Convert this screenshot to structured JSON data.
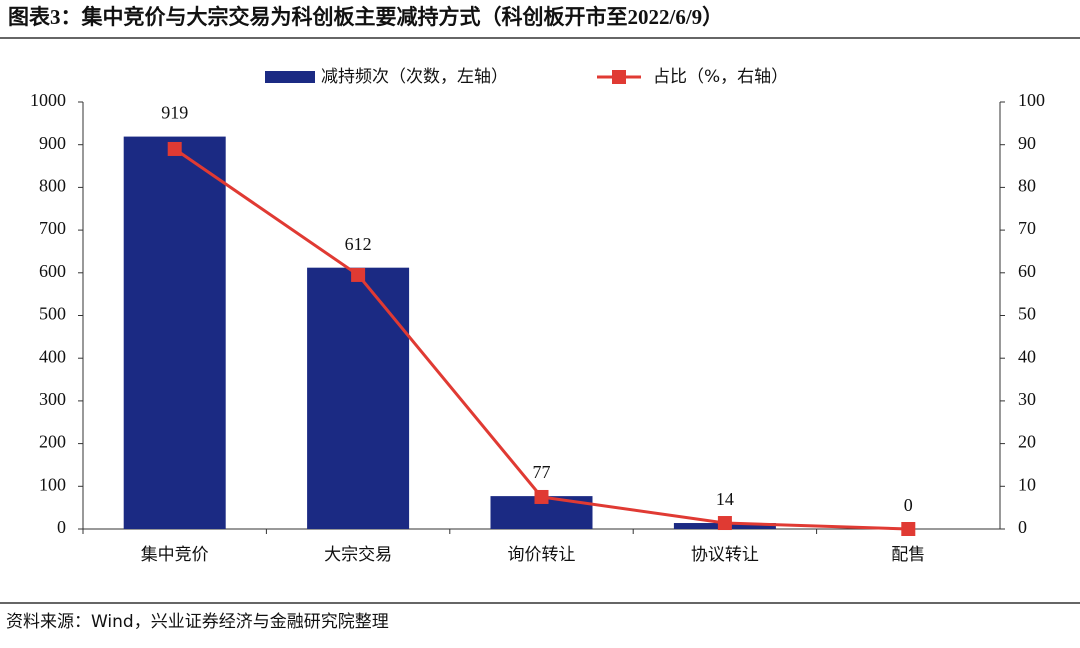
{
  "chart_data": {
    "type": "bar-line",
    "title": "图表3：集中竞价与大宗交易为科创板主要减持方式（科创板开市至2022/6/9）",
    "source": "资料来源：Wind，兴业证券经济与金融研究院整理",
    "categories": [
      "集中竞价",
      "大宗交易",
      "询价转让",
      "协议转让",
      "配售"
    ],
    "series": [
      {
        "name": "减持频次（次数，左轴）",
        "color": "#1b2a83",
        "type": "bar",
        "values": [
          919,
          612,
          77,
          14,
          0
        ]
      },
      {
        "name": "占比（%，右轴）",
        "color": "#e03a33",
        "type": "line",
        "axis": "y2",
        "values": [
          89,
          59.5,
          7.5,
          1.4,
          0
        ]
      }
    ],
    "ylim": [
      0,
      1000
    ],
    "yticks": [
      0,
      100,
      200,
      300,
      400,
      500,
      600,
      700,
      800,
      900,
      1000
    ],
    "y2lim": [
      0,
      100
    ],
    "y2ticks": [
      0,
      10,
      20,
      30,
      40,
      50,
      60,
      70,
      80,
      90,
      100
    ]
  }
}
